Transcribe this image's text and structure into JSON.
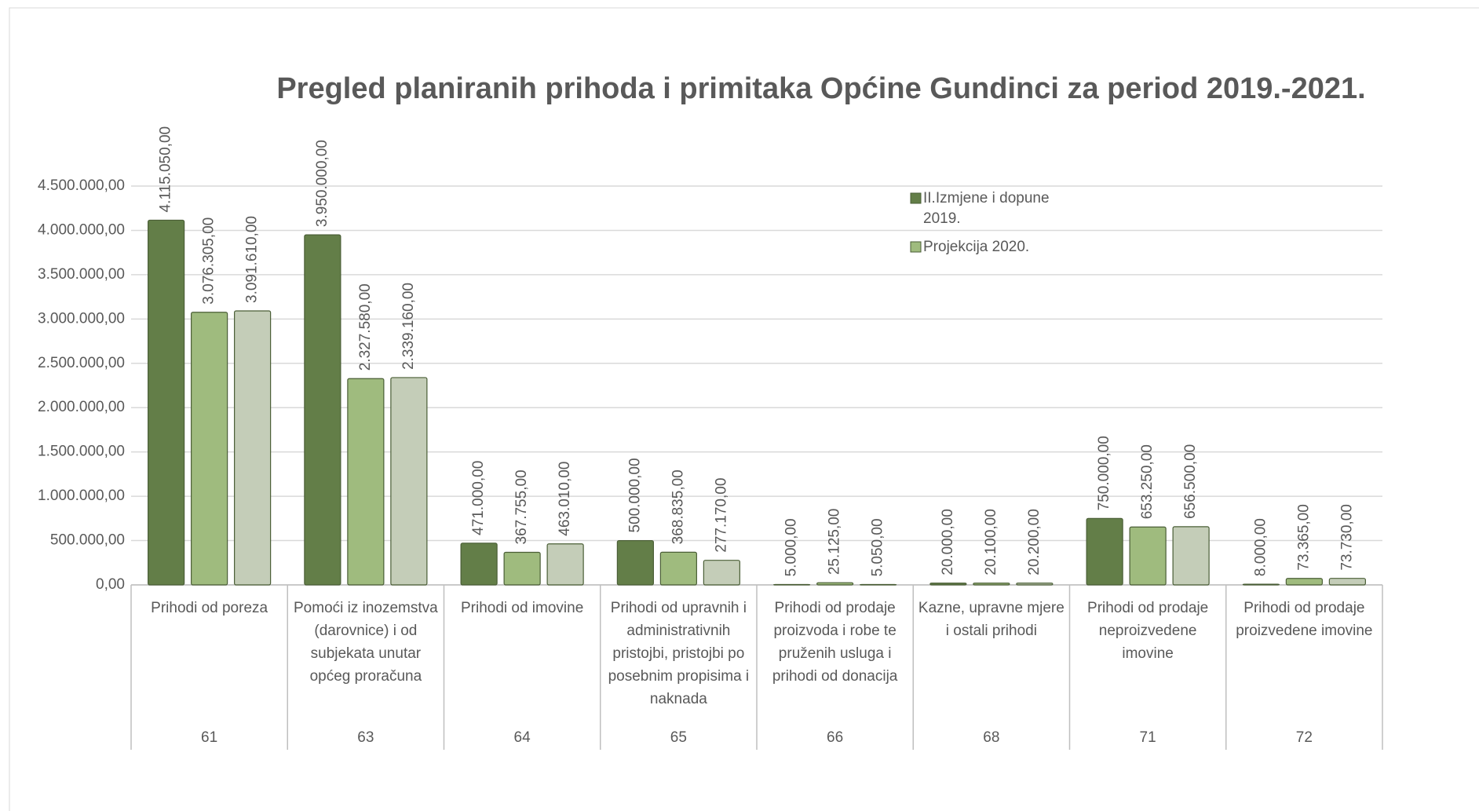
{
  "chart_data": {
    "type": "bar",
    "title": "Pregled planiranih prihoda i primitaka Općine Gundinci za period 2019.-2021.",
    "categories": [
      "Prihodi od poreza",
      "Pomoći iz inozemstva (darovnice) i od subjekata unutar općeg proračuna",
      "Prihodi od imovine",
      "Prihodi od upravnih i administrativnih pristojbi, pristojbi po posebnim propisima i naknada",
      "Prihodi od prodaje proizvoda i robe te pruženih usluga i prihodi od donacija",
      "Kazne, upravne mjere i ostali prihodi",
      "Prihodi od prodaje neproizvedene imovine",
      "Prihodi od prodaje proizvedene imovine"
    ],
    "category_codes": [
      "61",
      "63",
      "64",
      "65",
      "66",
      "68",
      "71",
      "72"
    ],
    "series": [
      {
        "name": "II.Izmjene i dopune 2019.",
        "color": "#637e48",
        "values": [
          4115050,
          3950000,
          471000,
          500000,
          5000,
          20000,
          750000,
          8000
        ],
        "value_labels": [
          "4.115.050,00",
          "3.950.000,00",
          "471.000,00",
          "500.000,00",
          "5.000,00",
          "20.000,00",
          "750.000,00",
          "8.000,00"
        ]
      },
      {
        "name": "Projekcija 2020.",
        "color": "#9fbb7e",
        "values": [
          3076305,
          2327580,
          367755,
          368835,
          25125,
          20100,
          653250,
          73365
        ],
        "value_labels": [
          "3.076.305,00",
          "2.327.580,00",
          "367.755,00",
          "368.835,00",
          "25.125,00",
          "20.100,00",
          "653.250,00",
          "73.365,00"
        ]
      },
      {
        "color": "#c4cdb8",
        "values": [
          3091610,
          2339160,
          463010,
          277170,
          5050,
          20200,
          656500,
          73730
        ],
        "value_labels": [
          "3.091.610,00",
          "2.339.160,00",
          "463.010,00",
          "277.170,00",
          "5.050,00",
          "20.200,00",
          "656.500,00",
          "73.730,00"
        ]
      }
    ],
    "ylim": [
      0,
      4500000
    ],
    "yticks": [
      {
        "value": 0,
        "label": "0,00"
      },
      {
        "value": 500000,
        "label": "500.000,00"
      },
      {
        "value": 1000000,
        "label": "1.000.000,00"
      },
      {
        "value": 1500000,
        "label": "1.500.000,00"
      },
      {
        "value": 2000000,
        "label": "2.000.000,00"
      },
      {
        "value": 2500000,
        "label": "2.500.000,00"
      },
      {
        "value": 3000000,
        "label": "3.000.000,00"
      },
      {
        "value": 3500000,
        "label": "3.500.000,00"
      },
      {
        "value": 4000000,
        "label": "4.000.000,00"
      },
      {
        "value": 4500000,
        "label": "4.500.000,00"
      }
    ],
    "grid": true
  }
}
